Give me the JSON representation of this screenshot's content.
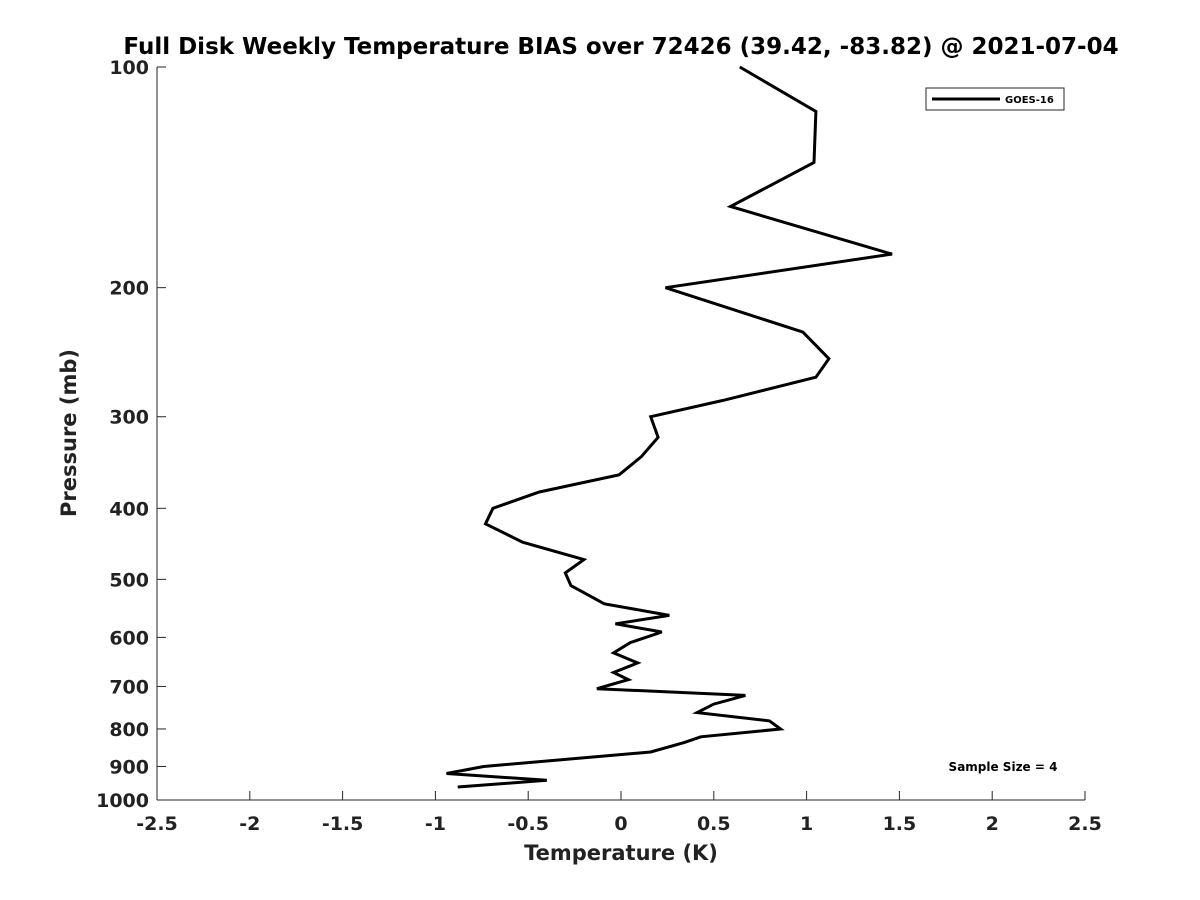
{
  "chart_data": {
    "type": "line",
    "title": "Full Disk Weekly Temperature BIAS over 72426 (39.42, -83.82) @ 2021-07-04",
    "xlabel": "Temperature (K)",
    "ylabel": "Pressure (mb)",
    "xlim": [
      -2.5,
      2.5
    ],
    "ylim": [
      1000,
      100
    ],
    "y_scale": "log",
    "y_reversed": true,
    "x_ticks": [
      "-2.5",
      "-2",
      "-1.5",
      "-1",
      "-0.5",
      "0",
      "0.5",
      "1",
      "1.5",
      "2",
      "2.5"
    ],
    "y_ticks": [
      "100",
      "200",
      "300",
      "400",
      "500",
      "600",
      "700",
      "800",
      "900",
      "1000"
    ],
    "grid": false,
    "legend": {
      "position": "top-right",
      "entries": [
        "GOES-16"
      ]
    },
    "annotation": "Sample Size = 4",
    "series": [
      {
        "name": "GOES-16",
        "color": "#000000",
        "points": [
          {
            "x": 0.64,
            "y": 100
          },
          {
            "x": 1.05,
            "y": 115
          },
          {
            "x": 1.04,
            "y": 135
          },
          {
            "x": 0.59,
            "y": 155
          },
          {
            "x": 1.46,
            "y": 180
          },
          {
            "x": 0.24,
            "y": 200
          },
          {
            "x": 0.98,
            "y": 230
          },
          {
            "x": 1.12,
            "y": 250
          },
          {
            "x": 1.05,
            "y": 265
          },
          {
            "x": 0.55,
            "y": 285
          },
          {
            "x": 0.16,
            "y": 300
          },
          {
            "x": 0.2,
            "y": 320
          },
          {
            "x": 0.11,
            "y": 340
          },
          {
            "x": -0.01,
            "y": 360
          },
          {
            "x": -0.44,
            "y": 380
          },
          {
            "x": -0.69,
            "y": 400
          },
          {
            "x": -0.73,
            "y": 420
          },
          {
            "x": -0.53,
            "y": 445
          },
          {
            "x": -0.2,
            "y": 470
          },
          {
            "x": -0.3,
            "y": 490
          },
          {
            "x": -0.27,
            "y": 510
          },
          {
            "x": -0.09,
            "y": 540
          },
          {
            "x": 0.26,
            "y": 560
          },
          {
            "x": -0.03,
            "y": 575
          },
          {
            "x": 0.22,
            "y": 590
          },
          {
            "x": 0.05,
            "y": 610
          },
          {
            "x": -0.04,
            "y": 630
          },
          {
            "x": 0.09,
            "y": 650
          },
          {
            "x": -0.04,
            "y": 670
          },
          {
            "x": 0.04,
            "y": 685
          },
          {
            "x": -0.13,
            "y": 705
          },
          {
            "x": 0.67,
            "y": 720
          },
          {
            "x": 0.5,
            "y": 740
          },
          {
            "x": 0.41,
            "y": 760
          },
          {
            "x": 0.8,
            "y": 780
          },
          {
            "x": 0.86,
            "y": 800
          },
          {
            "x": 0.43,
            "y": 820
          },
          {
            "x": 0.34,
            "y": 835
          },
          {
            "x": 0.16,
            "y": 860
          },
          {
            "x": -0.74,
            "y": 900
          },
          {
            "x": -0.94,
            "y": 920
          },
          {
            "x": -0.4,
            "y": 940
          },
          {
            "x": -0.88,
            "y": 960
          }
        ]
      }
    ]
  }
}
